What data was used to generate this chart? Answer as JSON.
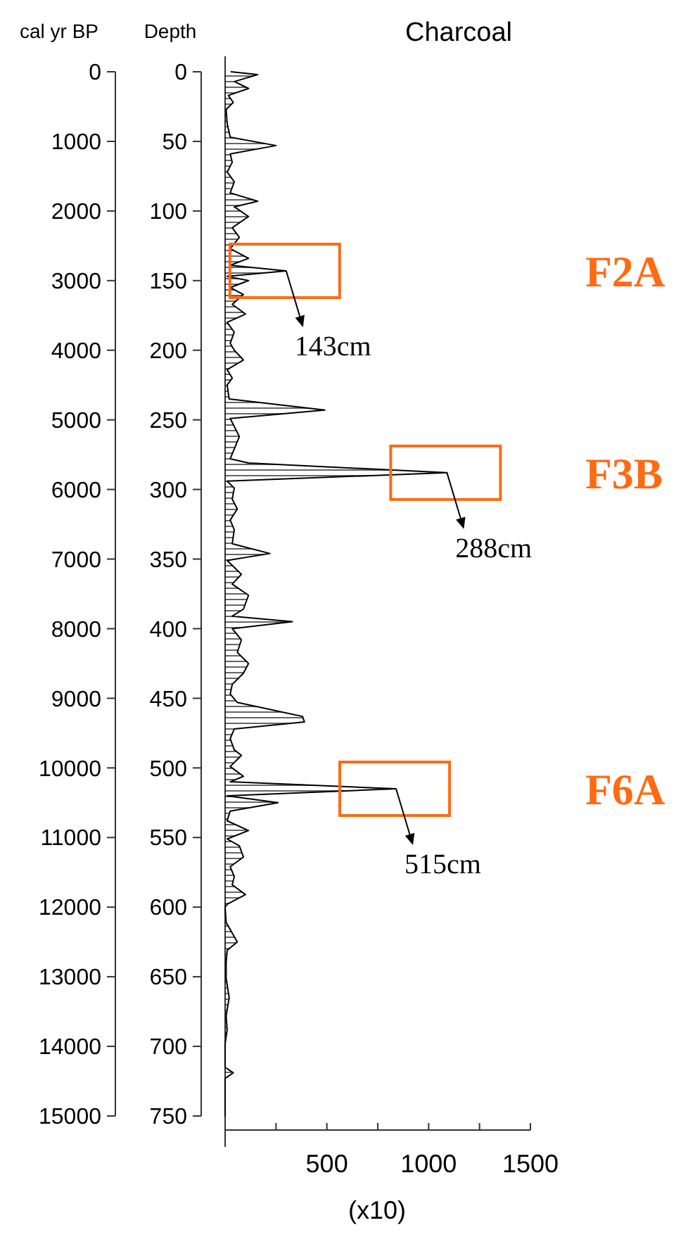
{
  "chart_data": {
    "type": "area",
    "orientation": "horizontal",
    "title": "Charcoal",
    "xlabel": "(x10)",
    "ylabel": "Depth",
    "y2label": "cal yr BP",
    "xlim": [
      0,
      1500
    ],
    "xticks": [
      {
        "value": 0,
        "label": null
      },
      {
        "value": 250,
        "label": null
      },
      500,
      {
        "value": 750,
        "label": null
      },
      1000,
      {
        "value": 1250,
        "label": null
      },
      1500
    ],
    "ylim": [
      750,
      0
    ],
    "yticks": [
      0,
      50,
      100,
      150,
      200,
      250,
      300,
      350,
      400,
      450,
      500,
      550,
      600,
      650,
      700,
      750
    ],
    "y2lim": [
      15000,
      0
    ],
    "y2ticks": [
      0,
      1000,
      2000,
      3000,
      4000,
      5000,
      6000,
      7000,
      8000,
      9000,
      10000,
      11000,
      12000,
      13000,
      14000,
      15000
    ],
    "series": [
      {
        "color": "#000000",
        "x": [
          0,
          2,
          7,
          12,
          17,
          22,
          27,
          37,
          47,
          53,
          59,
          65,
          72,
          79,
          87,
          93,
          97,
          104,
          112,
          119,
          127,
          134,
          139,
          143,
          147,
          150,
          155,
          160,
          167,
          174,
          180,
          187,
          195,
          200,
          207,
          214,
          220,
          225,
          235,
          243,
          249,
          262,
          278,
          281,
          288,
          294,
          299,
          307,
          314,
          322,
          329,
          339,
          346,
          351,
          361,
          368,
          376,
          386,
          391,
          395,
          400,
          408,
          417,
          425,
          432,
          440,
          447,
          453,
          463,
          467,
          472,
          479,
          487,
          491,
          499,
          506,
          510,
          515,
          520,
          525,
          531,
          538,
          545,
          551,
          556,
          564,
          571,
          578,
          584,
          591,
          598,
          600,
          611,
          625,
          631,
          640,
          651,
          665,
          678,
          688,
          698,
          715,
          719,
          723,
          750
        ],
        "values": [
          30,
          160,
          46,
          115,
          16,
          40,
          5,
          10,
          25,
          250,
          25,
          35,
          10,
          45,
          25,
          160,
          45,
          115,
          35,
          70,
          25,
          115,
          25,
          300,
          10,
          115,
          25,
          90,
          35,
          100,
          10,
          45,
          25,
          45,
          90,
          10,
          35,
          10,
          20,
          490,
          25,
          70,
          25,
          115,
          1090,
          10,
          45,
          35,
          60,
          25,
          45,
          35,
          220,
          10,
          80,
          35,
          115,
          90,
          35,
          330,
          35,
          80,
          60,
          115,
          90,
          35,
          25,
          60,
          380,
          390,
          45,
          25,
          45,
          80,
          25,
          90,
          25,
          840,
          10,
          260,
          25,
          10,
          115,
          10,
          70,
          90,
          25,
          45,
          35,
          100,
          10,
          0,
          5,
          60,
          10,
          5,
          5,
          20,
          5,
          10,
          0,
          0,
          40,
          0,
          0
        ]
      }
    ],
    "annotations": [
      "F2A",
      "F3B",
      "F6A",
      {
        "text": "143cm",
        "x": 300,
        "y": 143
      },
      {
        "text": "288cm",
        "x": 1090,
        "y": 288
      },
      {
        "text": "515cm",
        "x": 840,
        "y": 515
      }
    ]
  }
}
